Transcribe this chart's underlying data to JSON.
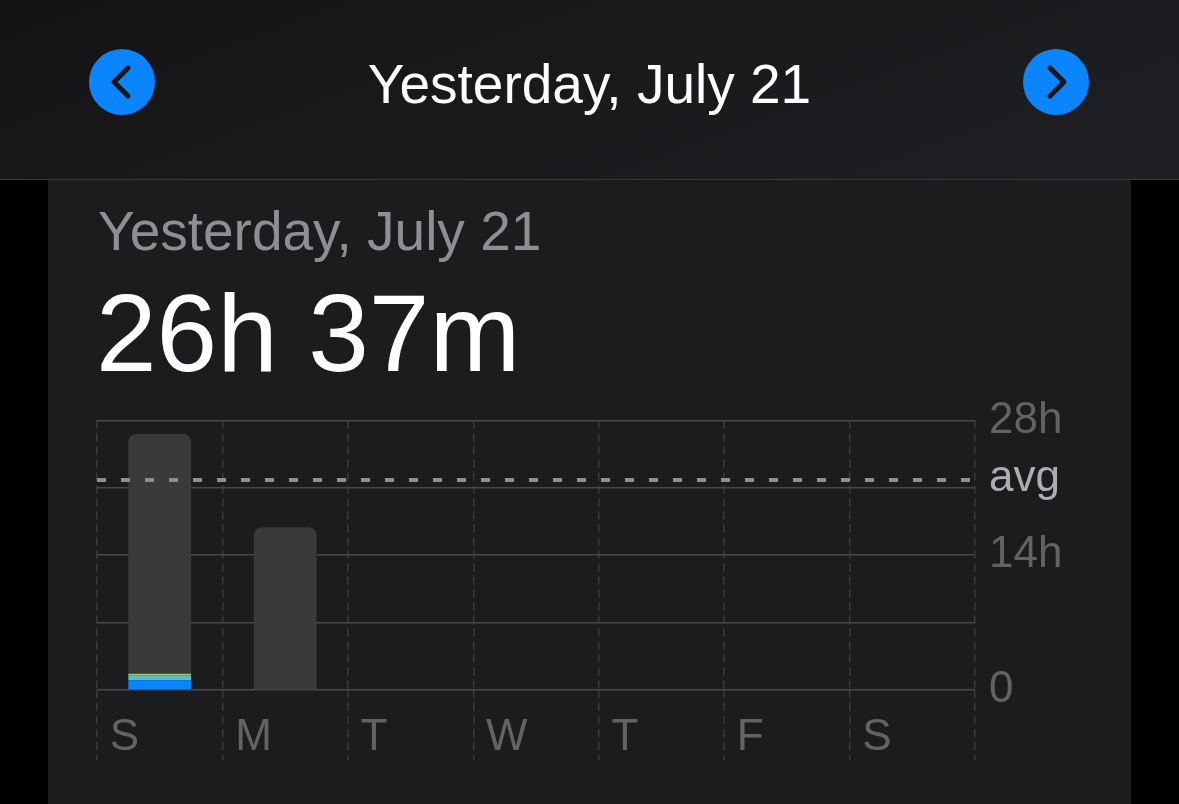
{
  "chart_data": {
    "type": "bar",
    "title": "Yesterday, July 21",
    "subtitle": "Yesterday, July 21",
    "annotations": [
      "26h 37m"
    ],
    "categories": [
      "S",
      "M",
      "T",
      "W",
      "T",
      "F",
      "S"
    ],
    "series": [
      {
        "color": "#0a84ff",
        "values": [
          1.0,
          null,
          null,
          null,
          null,
          null,
          null
        ]
      },
      {
        "color": "#4fc1d9",
        "values": [
          0.5,
          null,
          null,
          null,
          null,
          null,
          null
        ]
      },
      {
        "color": "#b8c95a",
        "values": [
          0.2,
          null,
          null,
          null,
          null,
          null,
          null
        ]
      },
      {
        "color": "#3a3a3c",
        "values": [
          24.9,
          16.9,
          null,
          null,
          null,
          null,
          null
        ]
      }
    ],
    "stacked": true,
    "ylim": [
      0,
      28
    ],
    "yticks": [
      0,
      {
        "value": 7,
        "label": null
      },
      {
        "value": 14,
        "label": "14h"
      },
      {
        "value": 21,
        "label": null
      },
      {
        "value": 28,
        "label": "28h"
      }
    ],
    "grid": true,
    "ref_lines": [
      {
        "axis": "y",
        "value": 21.8,
        "label": "avg",
        "color": "#8e8e93",
        "line_style": "dashed"
      }
    ]
  }
}
